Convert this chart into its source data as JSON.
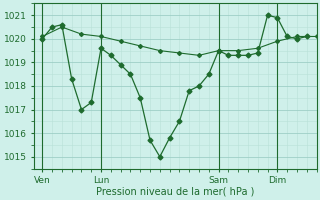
{
  "bg_color": "#cff0ea",
  "grid_major_color": "#9ecfc7",
  "grid_minor_color": "#b8e0d8",
  "line_color": "#1e6b2e",
  "xlabel": "Pression niveau de la mer( hPa )",
  "ylim": [
    1014.5,
    1021.5
  ],
  "yticks": [
    1015,
    1016,
    1017,
    1018,
    1019,
    1020,
    1021
  ],
  "xtick_labels": [
    "Ven",
    "Lun",
    "Sam",
    "Dim"
  ],
  "xtick_positions": [
    0,
    36,
    108,
    144
  ],
  "xlim": [
    -5,
    168
  ],
  "vline_positions": [
    0,
    36,
    108,
    144
  ],
  "line1_x": [
    0,
    6,
    12,
    18,
    24,
    30,
    36,
    42,
    48,
    54,
    60,
    66,
    72,
    78,
    84,
    90,
    96,
    102,
    108,
    114,
    120,
    126,
    132,
    138,
    144,
    150,
    156,
    162
  ],
  "line1_y": [
    1020.0,
    1020.5,
    1020.6,
    1018.3,
    1017.0,
    1017.3,
    1019.6,
    1019.3,
    1018.9,
    1018.5,
    1017.5,
    1015.7,
    1015.0,
    1015.8,
    1016.5,
    1017.8,
    1018.0,
    1018.5,
    1019.5,
    1019.3,
    1019.3,
    1019.3,
    1019.4,
    1021.0,
    1020.9,
    1020.1,
    1020.0,
    1020.1
  ],
  "line2_x": [
    0,
    12,
    24,
    36,
    48,
    60,
    72,
    84,
    96,
    108,
    120,
    132,
    144,
    156,
    168
  ],
  "line2_y": [
    1020.1,
    1020.5,
    1020.2,
    1020.1,
    1019.9,
    1019.7,
    1019.5,
    1019.4,
    1019.3,
    1019.5,
    1019.5,
    1019.6,
    1019.9,
    1020.1,
    1020.1
  ]
}
